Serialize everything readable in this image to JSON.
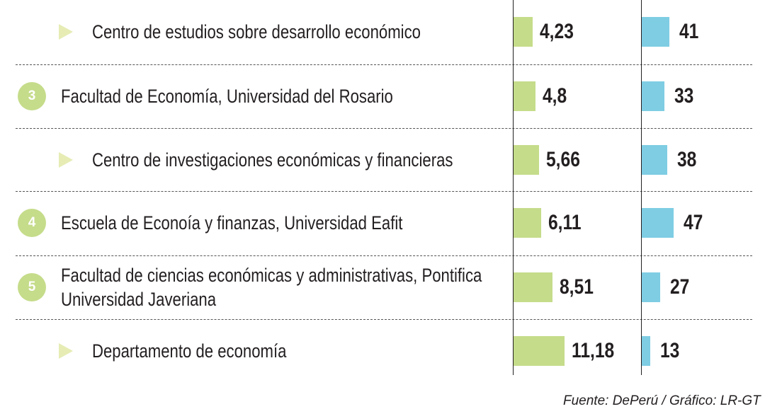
{
  "chart_data": {
    "type": "bar",
    "series": [
      {
        "values": [
          4.23,
          4.8,
          5.66,
          6.11,
          8.51,
          11.18
        ],
        "labels": [
          "4,23",
          "4,8",
          "5,66",
          "6,11",
          "8,51",
          "11,18"
        ]
      },
      {
        "values": [
          41,
          33,
          38,
          47,
          27,
          13
        ],
        "labels": [
          "41",
          "33",
          "38",
          "47",
          "27",
          "13"
        ]
      }
    ],
    "rows": [
      {
        "rank": "",
        "label": "Centro de estudios sobre desarrollo económico"
      },
      {
        "rank": "3",
        "label": "Facultad de Economía, Universidad del Rosario"
      },
      {
        "rank": "",
        "label": "Centro de investigaciones económicas y financieras"
      },
      {
        "rank": "4",
        "label": "Escuela de Econoía y finanzas, Universidad Eafit"
      },
      {
        "rank": "5",
        "label": "Facultad de ciencias económicas y administrativas, Pontifica\nUniversidad Javeriana"
      },
      {
        "rank": "",
        "label": "Departamento de economía"
      }
    ],
    "source": "Fuente: DePerú / Gráfico: LR-GT",
    "grid": "dashed row dividers",
    "colors": {
      "series1": "#c5dc8a",
      "series2": "#7ecde3",
      "badge": "#c5dc8a",
      "arrow": "#e6ecb4"
    }
  }
}
